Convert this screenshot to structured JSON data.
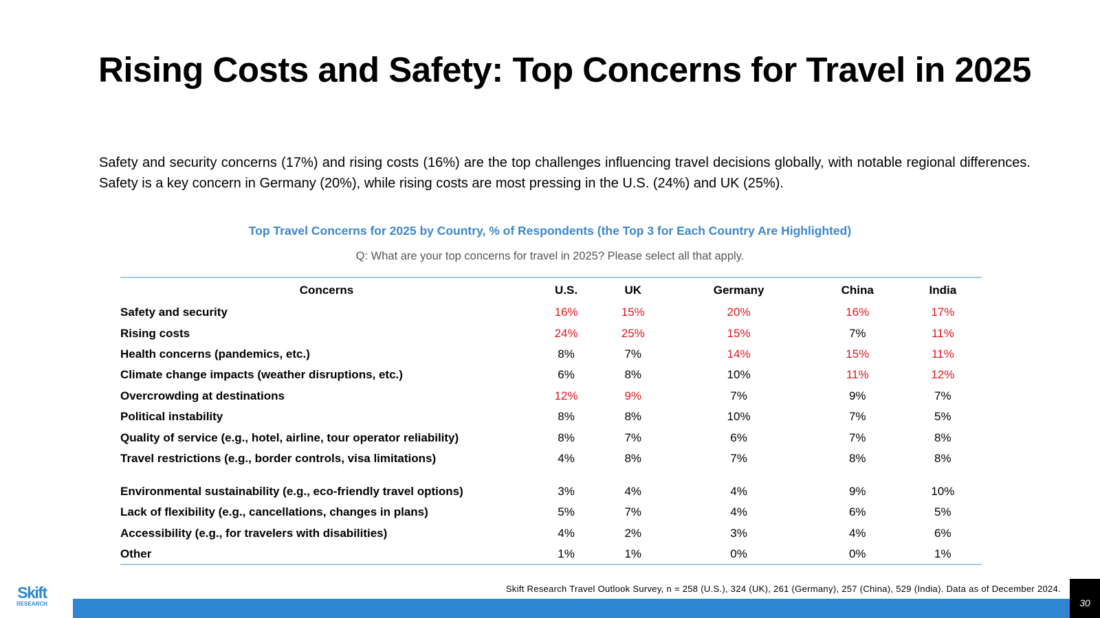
{
  "title": "Rising Costs and Safety: Top Concerns for Travel in 2025",
  "summary": "Safety and security concerns (17%) and rising costs (16%) are the top challenges influencing travel decisions globally, with notable regional differences. Safety is a key concern in Germany (20%), while rising costs are most pressing in the U.S. (24%) and UK (25%).",
  "table_title": "Top Travel Concerns for 2025 by Country, % of Respondents (the Top 3 for Each Country Are Highlighted)",
  "question": "Q: What are your top concerns for travel in 2025? Please select all that apply.",
  "headers": [
    "Concerns",
    "U.S.",
    "UK",
    "Germany",
    "China",
    "India"
  ],
  "highlight_color": "#e0141e",
  "rows": [
    {
      "label": "Safety and security",
      "values": [
        "16%",
        "15%",
        "20%",
        "16%",
        "17%"
      ],
      "highlighted": [
        true,
        true,
        true,
        true,
        true
      ]
    },
    {
      "label": "Rising costs",
      "values": [
        "24%",
        "25%",
        "15%",
        "7%",
        "11%"
      ],
      "highlighted": [
        true,
        true,
        true,
        false,
        true
      ]
    },
    {
      "label": "Health concerns (pandemics, etc.)",
      "values": [
        "8%",
        "7%",
        "14%",
        "15%",
        "11%"
      ],
      "highlighted": [
        false,
        false,
        true,
        true,
        true
      ]
    },
    {
      "label": "Climate change impacts (weather disruptions, etc.)",
      "values": [
        "6%",
        "8%",
        "10%",
        "11%",
        "12%"
      ],
      "highlighted": [
        false,
        false,
        false,
        true,
        true
      ]
    },
    {
      "label": "Overcrowding at destinations",
      "values": [
        "12%",
        "9%",
        "7%",
        "9%",
        "7%"
      ],
      "highlighted": [
        true,
        true,
        false,
        false,
        false
      ]
    },
    {
      "label": "Political instability",
      "values": [
        "8%",
        "8%",
        "10%",
        "7%",
        "5%"
      ],
      "highlighted": [
        false,
        false,
        false,
        false,
        false
      ]
    },
    {
      "label": "Quality of service (e.g., hotel, airline, tour operator reliability)",
      "values": [
        "8%",
        "7%",
        "6%",
        "7%",
        "8%"
      ],
      "highlighted": [
        false,
        false,
        false,
        false,
        false
      ]
    },
    {
      "label": "Travel restrictions (e.g., border controls, visa limitations)",
      "values": [
        "4%",
        "8%",
        "7%",
        "8%",
        "8%"
      ],
      "highlighted": [
        false,
        false,
        false,
        false,
        false
      ]
    },
    {
      "label": "Environmental sustainability (e.g., eco-friendly travel options)",
      "values": [
        "3%",
        "4%",
        "4%",
        "9%",
        "10%"
      ],
      "highlighted": [
        false,
        false,
        false,
        false,
        false
      ]
    },
    {
      "label": "Lack of flexibility (e.g., cancellations, changes in plans)",
      "values": [
        "5%",
        "7%",
        "4%",
        "6%",
        "5%"
      ],
      "highlighted": [
        false,
        false,
        false,
        false,
        false
      ]
    },
    {
      "label": "Accessibility (e.g., for travelers with disabilities)",
      "values": [
        "4%",
        "2%",
        "3%",
        "4%",
        "6%"
      ],
      "highlighted": [
        false,
        false,
        false,
        false,
        false
      ]
    },
    {
      "label": "Other",
      "values": [
        "1%",
        "1%",
        "0%",
        "0%",
        "1%"
      ],
      "highlighted": [
        false,
        false,
        false,
        false,
        false
      ]
    }
  ],
  "source": "Skift Research Travel Outlook Survey, n = 258 (U.S.), 324 (UK), 261 (Germany), 257 (China), 529 (India). Data as of December  2024.",
  "page_number": "30",
  "logo": {
    "name": "Skift",
    "sub": "RESEARCH"
  }
}
